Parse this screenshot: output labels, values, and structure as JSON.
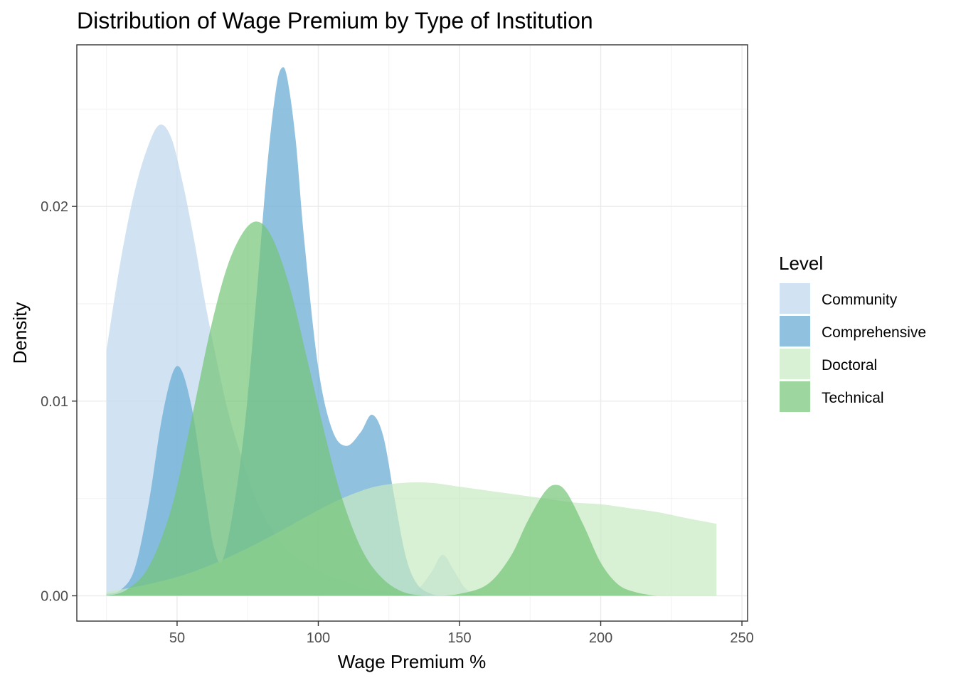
{
  "chart_data": {
    "type": "area",
    "title": "Distribution of Wage Premium by Type of Institution",
    "xlabel": "Wage Premium %",
    "ylabel": "Density",
    "xlim": [
      14.5,
      252
    ],
    "ylim": [
      -0.0013,
      0.0283
    ],
    "x_ticks": [
      50,
      100,
      150,
      200,
      250
    ],
    "y_ticks": [
      0.0,
      0.01,
      0.02
    ],
    "y_tick_labels": [
      "0.00",
      "0.01",
      "0.02"
    ],
    "grid": true,
    "legend_title": "Level",
    "legend_position": "right",
    "series": [
      {
        "name": "Community",
        "color": "#c6dbef",
        "opacity": 0.8,
        "x": [
          25,
          30,
          35,
          40,
          44,
          48,
          52,
          56,
          60,
          64,
          68,
          72,
          76,
          80,
          84,
          88,
          92,
          96,
          100,
          104,
          108,
          112,
          116,
          120,
          125,
          130,
          135,
          140,
          144,
          148,
          152,
          156,
          160,
          170,
          180,
          190,
          200,
          210,
          226
        ],
        "y": [
          0.0126,
          0.0172,
          0.0208,
          0.0232,
          0.0242,
          0.0235,
          0.0212,
          0.0183,
          0.015,
          0.0121,
          0.0095,
          0.0075,
          0.0057,
          0.0043,
          0.0033,
          0.0025,
          0.002,
          0.0016,
          0.0013,
          0.001,
          0.0008,
          0.0006,
          0.0004,
          0.0003,
          0.0002,
          0.0001,
          0.0003,
          0.0012,
          0.0021,
          0.0013,
          0.0004,
          0.0001,
          0.0,
          0.0,
          0.0,
          0.0,
          0.0,
          0.0,
          0.0
        ]
      },
      {
        "name": "Comprehensive",
        "color": "#6baed6",
        "opacity": 0.75,
        "x": [
          25,
          30,
          35,
          40,
          45,
          50,
          55,
          60,
          63,
          66,
          70,
          74,
          78,
          82,
          85,
          87,
          89,
          92,
          95,
          100,
          105,
          110,
          115,
          119,
          123,
          127,
          131,
          135,
          140,
          145,
          150
        ],
        "y": [
          0.0001,
          0.0003,
          0.0014,
          0.0048,
          0.0094,
          0.0118,
          0.0098,
          0.0051,
          0.0025,
          0.0018,
          0.0045,
          0.0088,
          0.0152,
          0.0222,
          0.026,
          0.0271,
          0.0266,
          0.0234,
          0.0183,
          0.0117,
          0.0085,
          0.0077,
          0.0084,
          0.0093,
          0.0082,
          0.005,
          0.002,
          0.0006,
          0.0001,
          0.0,
          0.0
        ]
      },
      {
        "name": "Doctoral",
        "color": "#c7e9c0",
        "opacity": 0.7,
        "x": [
          25,
          40,
          55,
          70,
          85,
          100,
          110,
          120,
          130,
          140,
          150,
          160,
          170,
          180,
          190,
          200,
          210,
          220,
          230,
          241
        ],
        "y": [
          0.0002,
          0.0006,
          0.0012,
          0.0021,
          0.0032,
          0.0044,
          0.0051,
          0.0056,
          0.0058,
          0.0058,
          0.0056,
          0.0054,
          0.0052,
          0.005,
          0.0048,
          0.0047,
          0.0045,
          0.0043,
          0.004,
          0.0037
        ]
      },
      {
        "name": "Technical",
        "color": "#74c476",
        "opacity": 0.7,
        "x": [
          25,
          32,
          40,
          48,
          55,
          62,
          68,
          74,
          79,
          84,
          90,
          96,
          102,
          108,
          115,
          122,
          130,
          140,
          150,
          160,
          168,
          174,
          180,
          184,
          188,
          194,
          200,
          206,
          212,
          220,
          226
        ],
        "y": [
          0.0,
          0.0003,
          0.0015,
          0.0045,
          0.009,
          0.0138,
          0.017,
          0.0188,
          0.0192,
          0.0183,
          0.0158,
          0.0122,
          0.0085,
          0.0052,
          0.0025,
          0.001,
          0.0002,
          0.0,
          0.0001,
          0.0006,
          0.002,
          0.0038,
          0.0053,
          0.0057,
          0.0053,
          0.0036,
          0.0017,
          0.0006,
          0.0002,
          0.0,
          0.0
        ]
      }
    ]
  }
}
